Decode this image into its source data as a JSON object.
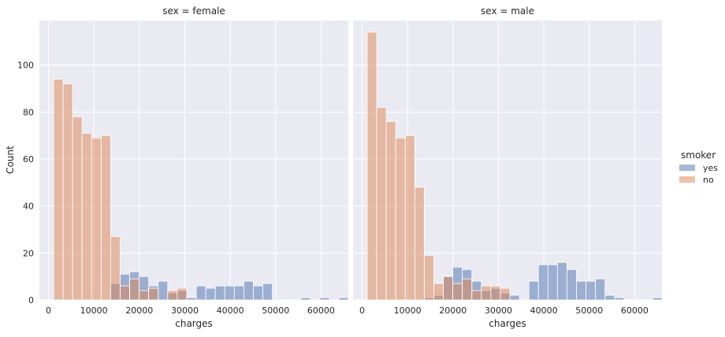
{
  "colors": {
    "background": "#eaeaf2",
    "grid": "#ffffff",
    "yes": "#4c72b0",
    "no": "#dd8452",
    "text": "#262626"
  },
  "legend": {
    "title": "smoker",
    "items": [
      {
        "label": "yes",
        "color": "#4c72b0"
      },
      {
        "label": "no",
        "color": "#dd8452"
      }
    ]
  },
  "chart_data": {
    "type": "bar",
    "stacked": false,
    "x_tick_labels": [
      "0",
      "10000",
      "20000",
      "30000",
      "40000",
      "50000",
      "60000"
    ],
    "y_tick_labels": [
      "0",
      "20",
      "40",
      "60",
      "80",
      "100"
    ],
    "xlim": [
      -2000,
      66000
    ],
    "ylim": [
      0,
      119
    ],
    "legend_position": "right",
    "grid": true,
    "xlabel": "charges",
    "ylabel": "Count",
    "bin_start": 1121.87,
    "bin_width": 2093.6,
    "panels": [
      {
        "title": "sex = female",
        "series": [
          {
            "name": "yes",
            "values": [
              0,
              0,
              0,
              0,
              0,
              0,
              7,
              11,
              12,
              10,
              6,
              8,
              3,
              4,
              1,
              6,
              5,
              6,
              6,
              6,
              8,
              6,
              7,
              0,
              0,
              0,
              1,
              0,
              1,
              0,
              1
            ]
          },
          {
            "name": "no",
            "values": [
              94,
              92,
              78,
              71,
              69,
              70,
              27,
              6,
              9,
              4,
              5,
              0,
              4,
              5,
              0,
              0,
              0,
              0,
              0,
              0,
              0,
              0,
              0,
              0,
              0,
              0,
              0,
              0,
              0,
              0,
              0
            ]
          }
        ]
      },
      {
        "title": "sex = male",
        "series": [
          {
            "name": "yes",
            "values": [
              0,
              0,
              0,
              0,
              0,
              0,
              1,
              2,
              10,
              14,
              13,
              8,
              4,
              5,
              3,
              2,
              0,
              8,
              15,
              15,
              16,
              13,
              8,
              8,
              9,
              2,
              1,
              0,
              0,
              0,
              1
            ]
          },
          {
            "name": "no",
            "values": [
              114,
              82,
              76,
              69,
              70,
              48,
              19,
              7,
              10,
              7,
              9,
              4,
              6,
              6,
              5,
              0,
              0,
              0,
              0,
              0,
              0,
              0,
              0,
              0,
              0,
              0,
              0,
              0,
              0,
              0,
              0
            ]
          }
        ]
      }
    ]
  }
}
